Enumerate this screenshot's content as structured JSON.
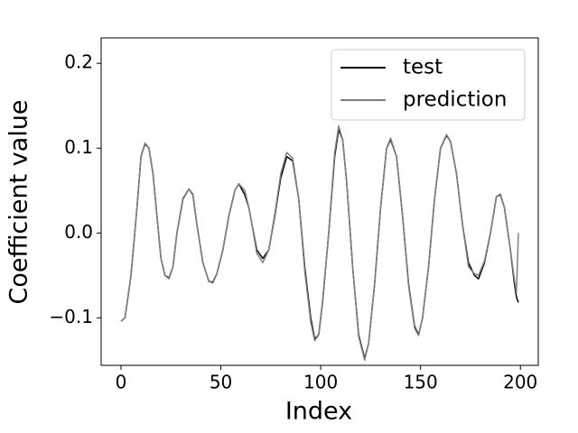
{
  "chart_data": {
    "type": "line",
    "x_label": "Index",
    "y_label": "Coefficient value",
    "x": [
      0,
      2,
      5,
      8,
      10,
      12,
      14,
      16,
      18,
      20,
      22,
      24,
      26,
      28,
      31,
      34,
      36,
      38,
      41,
      44,
      46,
      48,
      51,
      54,
      57,
      59,
      62,
      64,
      66,
      68,
      71,
      74,
      77,
      80,
      83,
      86,
      89,
      92,
      95,
      97,
      99,
      101,
      104,
      107,
      109,
      111,
      113,
      116,
      119,
      122,
      124,
      127,
      130,
      133,
      135,
      138,
      141,
      144,
      147,
      149,
      151,
      154,
      157,
      160,
      163,
      165,
      168,
      171,
      174,
      177,
      179,
      182,
      185,
      188,
      190,
      192,
      195,
      197,
      198,
      199
    ],
    "series": [
      {
        "name": "test",
        "color": "#000000",
        "values": [
          -0.104,
          -0.1,
          -0.05,
          0.03,
          0.09,
          0.105,
          0.1,
          0.07,
          0.02,
          -0.03,
          -0.05,
          -0.053,
          -0.04,
          0.0,
          0.04,
          0.052,
          0.045,
          0.01,
          -0.035,
          -0.057,
          -0.058,
          -0.048,
          -0.02,
          0.02,
          0.05,
          0.058,
          0.045,
          0.03,
          0.005,
          -0.02,
          -0.03,
          -0.02,
          0.02,
          0.065,
          0.09,
          0.085,
          0.04,
          -0.04,
          -0.1,
          -0.125,
          -0.12,
          -0.08,
          0.0,
          0.09,
          0.122,
          0.11,
          0.06,
          -0.04,
          -0.12,
          -0.148,
          -0.13,
          -0.06,
          0.03,
          0.1,
          0.11,
          0.09,
          0.02,
          -0.06,
          -0.11,
          -0.12,
          -0.1,
          -0.04,
          0.04,
          0.1,
          0.115,
          0.108,
          0.07,
          0.01,
          -0.035,
          -0.05,
          -0.054,
          -0.035,
          0.0,
          0.043,
          0.045,
          0.03,
          -0.02,
          -0.06,
          -0.075,
          -0.082
        ]
      },
      {
        "name": "prediction",
        "color": "#808080",
        "values": [
          -0.104,
          -0.1,
          -0.05,
          0.03,
          0.09,
          0.106,
          0.1,
          0.07,
          0.02,
          -0.03,
          -0.05,
          -0.054,
          -0.04,
          0.0,
          0.041,
          0.052,
          0.046,
          0.01,
          -0.035,
          -0.057,
          -0.059,
          -0.048,
          -0.02,
          0.02,
          0.05,
          0.058,
          0.05,
          0.03,
          0.004,
          -0.024,
          -0.035,
          -0.02,
          0.022,
          0.07,
          0.095,
          0.088,
          0.04,
          -0.045,
          -0.105,
          -0.127,
          -0.12,
          -0.078,
          0.0,
          0.095,
          0.126,
          0.11,
          0.06,
          -0.04,
          -0.122,
          -0.15,
          -0.13,
          -0.06,
          0.03,
          0.1,
          0.112,
          0.09,
          0.02,
          -0.062,
          -0.112,
          -0.121,
          -0.1,
          -0.04,
          0.04,
          0.1,
          0.116,
          0.108,
          0.07,
          0.01,
          -0.04,
          -0.048,
          -0.05,
          -0.033,
          0.0,
          0.043,
          0.046,
          0.03,
          -0.02,
          -0.055,
          -0.07,
          0.0
        ]
      }
    ],
    "xlim": [
      -9.95,
      208.95
    ],
    "ylim": [
      -0.156,
      0.23
    ],
    "xticks": [
      0,
      50,
      100,
      150,
      200
    ],
    "yticks": [
      {
        "value": -0.1,
        "label": "−0.1"
      },
      {
        "value": 0,
        "label": "0.0"
      },
      0.1,
      0.2
    ],
    "legend": "upper right"
  }
}
